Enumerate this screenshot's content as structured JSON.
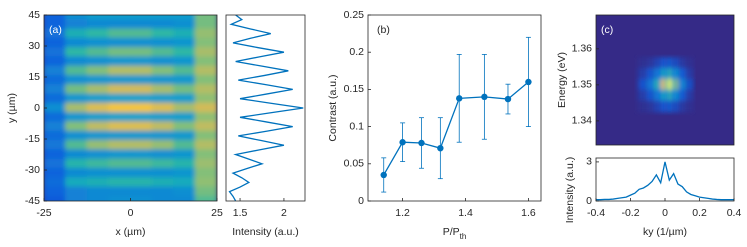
{
  "chart_data": [
    {
      "type": "heatmap",
      "panel_label": "(a)",
      "xlabel": "x (µm)",
      "ylabel": "y (µm)",
      "colormap": "parula",
      "zlim": [
        0,
        1
      ],
      "x": [
        -21.875,
        -15.625,
        -9.375,
        -3.125,
        3.125,
        9.375,
        15.625,
        21.875
      ],
      "y": [
        45,
        40.5,
        36,
        31.5,
        27,
        22.5,
        18,
        13.5,
        9,
        4.5,
        0,
        -4.5,
        -9,
        -13.5,
        -18,
        -22.5,
        -27,
        -31.5,
        -36,
        -40.5,
        -45
      ],
      "z": [
        [
          0.15,
          0.3,
          0.35,
          0.35,
          0.35,
          0.35,
          0.35,
          0.6
        ],
        [
          0.15,
          0.25,
          0.28,
          0.28,
          0.28,
          0.28,
          0.3,
          0.6
        ],
        [
          0.2,
          0.45,
          0.5,
          0.55,
          0.55,
          0.5,
          0.45,
          0.65
        ],
        [
          0.15,
          0.28,
          0.3,
          0.3,
          0.3,
          0.3,
          0.32,
          0.62
        ],
        [
          0.2,
          0.5,
          0.55,
          0.6,
          0.6,
          0.55,
          0.5,
          0.68
        ],
        [
          0.15,
          0.28,
          0.3,
          0.32,
          0.32,
          0.3,
          0.32,
          0.62
        ],
        [
          0.25,
          0.55,
          0.62,
          0.7,
          0.7,
          0.62,
          0.55,
          0.7
        ],
        [
          0.18,
          0.3,
          0.32,
          0.33,
          0.33,
          0.32,
          0.33,
          0.62
        ],
        [
          0.25,
          0.6,
          0.68,
          0.75,
          0.75,
          0.68,
          0.6,
          0.7
        ],
        [
          0.18,
          0.32,
          0.35,
          0.36,
          0.36,
          0.35,
          0.35,
          0.64
        ],
        [
          0.3,
          0.68,
          0.78,
          0.85,
          0.85,
          0.78,
          0.68,
          0.75
        ],
        [
          0.18,
          0.32,
          0.35,
          0.36,
          0.36,
          0.35,
          0.35,
          0.64
        ],
        [
          0.25,
          0.62,
          0.72,
          0.78,
          0.78,
          0.72,
          0.62,
          0.72
        ],
        [
          0.18,
          0.3,
          0.32,
          0.33,
          0.33,
          0.32,
          0.33,
          0.62
        ],
        [
          0.22,
          0.55,
          0.65,
          0.7,
          0.7,
          0.65,
          0.55,
          0.7
        ],
        [
          0.15,
          0.28,
          0.3,
          0.32,
          0.32,
          0.3,
          0.32,
          0.62
        ],
        [
          0.2,
          0.48,
          0.52,
          0.55,
          0.55,
          0.52,
          0.48,
          0.66
        ],
        [
          0.15,
          0.28,
          0.3,
          0.3,
          0.3,
          0.3,
          0.32,
          0.62
        ],
        [
          0.18,
          0.42,
          0.45,
          0.48,
          0.48,
          0.45,
          0.42,
          0.64
        ],
        [
          0.15,
          0.25,
          0.28,
          0.28,
          0.28,
          0.28,
          0.3,
          0.6
        ],
        [
          0.12,
          0.25,
          0.28,
          0.3,
          0.3,
          0.28,
          0.28,
          0.55
        ]
      ],
      "xlim": [
        -25,
        25
      ],
      "ylim": [
        -45,
        45
      ],
      "xticks": [
        -25,
        0,
        25
      ],
      "yticks": [
        45,
        30,
        15,
        0,
        -15,
        -30,
        -45
      ]
    },
    {
      "type": "line",
      "orientation": "horizontal",
      "xlabel": "Intensity (a.u.)",
      "color": "#0072bd",
      "y": [
        45,
        42.75,
        40.5,
        38.25,
        36,
        33.75,
        31.5,
        29.25,
        27,
        24.75,
        22.5,
        20.25,
        18,
        15.75,
        13.5,
        11.25,
        9,
        6.75,
        4.5,
        2.25,
        0,
        -2.25,
        -4.5,
        -6.75,
        -9,
        -11.25,
        -13.5,
        -15.75,
        -18,
        -20.25,
        -22.5,
        -24.75,
        -27,
        -29.25,
        -31.5,
        -33.75,
        -36,
        -38.25,
        -40.5,
        -42.75,
        -45
      ],
      "values": [
        1.45,
        1.52,
        1.4,
        1.62,
        1.85,
        1.62,
        1.42,
        1.7,
        2.0,
        1.72,
        1.45,
        1.75,
        2.05,
        1.78,
        1.48,
        1.8,
        2.1,
        1.8,
        1.5,
        1.86,
        2.22,
        1.86,
        1.5,
        1.8,
        2.1,
        1.8,
        1.48,
        1.74,
        2.0,
        1.72,
        1.45,
        1.6,
        1.75,
        1.58,
        1.42,
        1.52,
        1.6,
        1.5,
        1.38,
        1.42,
        1.45
      ],
      "xlim": [
        1.34,
        2.24
      ],
      "ylim": [
        -45,
        45
      ],
      "xticks": [
        1.5,
        2
      ]
    },
    {
      "type": "errorbar",
      "panel_label": "(b)",
      "xlabel": "P/P",
      "xlabel_subscript": "th",
      "ylabel": "Contrast (a.u.)",
      "color": "#0072bd",
      "x": [
        1.14,
        1.2,
        1.26,
        1.32,
        1.38,
        1.46,
        1.535,
        1.6
      ],
      "values": [
        0.035,
        0.079,
        0.078,
        0.071,
        0.138,
        0.14,
        0.137,
        0.16
      ],
      "errors": [
        0.023,
        0.026,
        0.034,
        0.041,
        0.059,
        0.057,
        0.02,
        0.06
      ],
      "xlim": [
        1.09,
        1.64
      ],
      "ylim": [
        0,
        0.25
      ],
      "xticks": [
        1.2,
        1.4,
        1.6
      ],
      "yticks": [
        0,
        0.05,
        0.1,
        0.15,
        0.2,
        0.25
      ]
    },
    {
      "type": "heatmap",
      "panel_label": "(c)",
      "ylabel": "Energy (eV)",
      "colormap": "parula",
      "zlim": [
        0,
        1
      ],
      "x": [
        -0.15,
        -0.13,
        -0.11,
        -0.09,
        -0.07,
        -0.05,
        -0.03,
        -0.01,
        0.01,
        0.03,
        0.05,
        0.07,
        0.09,
        0.11,
        0.13,
        0.15
      ],
      "y": [
        1.356,
        1.353,
        1.35,
        1.347,
        1.344
      ],
      "z": [
        [
          0.01,
          0.02,
          0.01,
          0.04,
          0.02,
          0.08,
          0.05,
          0.13,
          0.07,
          0.15,
          0.06,
          0.1,
          0.03,
          0.05,
          0.01,
          0.02
        ],
        [
          0.03,
          0.06,
          0.04,
          0.13,
          0.08,
          0.25,
          0.15,
          0.43,
          0.23,
          0.5,
          0.2,
          0.33,
          0.1,
          0.15,
          0.04,
          0.05
        ],
        [
          0.05,
          0.12,
          0.08,
          0.25,
          0.15,
          0.5,
          0.3,
          0.85,
          0.45,
          1.0,
          0.4,
          0.65,
          0.2,
          0.3,
          0.08,
          0.1
        ],
        [
          0.03,
          0.06,
          0.04,
          0.13,
          0.08,
          0.25,
          0.15,
          0.43,
          0.23,
          0.5,
          0.2,
          0.33,
          0.1,
          0.15,
          0.04,
          0.05
        ],
        [
          0.01,
          0.02,
          0.01,
          0.04,
          0.02,
          0.08,
          0.05,
          0.13,
          0.07,
          0.15,
          0.06,
          0.1,
          0.03,
          0.05,
          0.01,
          0.02
        ]
      ],
      "xlim": [
        -0.4,
        0.4
      ],
      "ylim": [
        1.3333,
        1.3694
      ],
      "yticks": [
        1.34,
        1.35,
        1.36
      ]
    },
    {
      "type": "line",
      "xlabel": "ky (1/µm)",
      "ylabel": "Intensity (a.u.)",
      "color": "#0072bd",
      "x": [
        -0.4,
        -0.375,
        -0.35,
        -0.325,
        -0.3,
        -0.275,
        -0.25,
        -0.225,
        -0.2,
        -0.175,
        -0.15,
        -0.125,
        -0.1,
        -0.075,
        -0.05,
        -0.025,
        0,
        0.025,
        0.05,
        0.075,
        0.1,
        0.125,
        0.15,
        0.175,
        0.2,
        0.225,
        0.25,
        0.275,
        0.3,
        0.325,
        0.35,
        0.375,
        0.4
      ],
      "values": [
        0.1,
        0.1,
        0.12,
        0.12,
        0.15,
        0.2,
        0.25,
        0.3,
        0.45,
        0.6,
        0.9,
        1.0,
        1.2,
        1.5,
        2.0,
        1.4,
        3.0,
        1.6,
        2.1,
        1.3,
        1.1,
        0.7,
        0.5,
        0.4,
        0.3,
        0.25,
        0.2,
        0.15,
        0.12,
        0.1,
        0.1,
        0.1,
        0.1
      ],
      "xlim": [
        -0.4,
        0.4
      ],
      "ylim": [
        0,
        3.3
      ],
      "xticks": [
        -0.4,
        -0.2,
        0,
        0.2,
        0.4
      ],
      "yticks": [
        0,
        3
      ]
    }
  ]
}
